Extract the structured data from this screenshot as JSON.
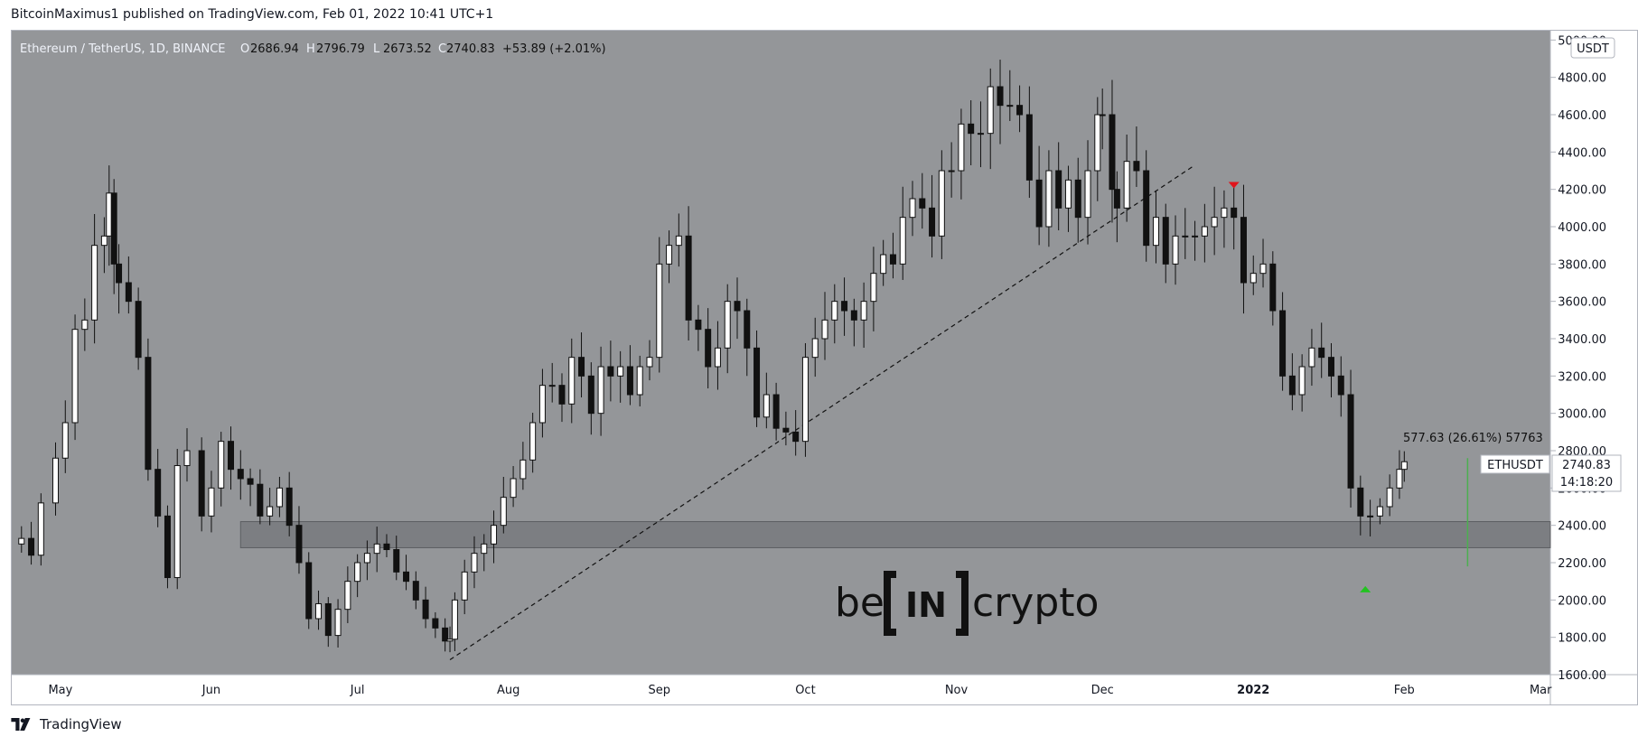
{
  "header": {
    "published_line": "BitcoinMaximus1 published on TradingView.com, Feb 01, 2022 10:41 UTC+1"
  },
  "legend": {
    "symbol": "Ethereum / TetherUS, 1D, BINANCE",
    "o_key": "O",
    "o_val": "2686.94",
    "h_key": "H",
    "h_val": "2796.79",
    "l_key": "L",
    "l_val": "2673.52",
    "c_key": "C",
    "c_val": "2740.83",
    "change": "+53.89 (+2.01%)"
  },
  "price_axis": {
    "currency": "USDT",
    "labels": [
      "5000.00",
      "4800.00",
      "4600.00",
      "4400.00",
      "4200.00",
      "4000.00",
      "3800.00",
      "3600.00",
      "3400.00",
      "3200.00",
      "3000.00",
      "2800.00",
      "2600.00",
      "2400.00",
      "2200.00",
      "2000.00",
      "1800.00",
      "1600.00"
    ],
    "last_price_tag": "2740.83",
    "countdown": "14:18:20",
    "symbol_tag": "ETHUSDT"
  },
  "time_axis": {
    "labels": [
      "May",
      "Jun",
      "Jul",
      "Aug",
      "Sep",
      "Oct",
      "Nov",
      "Dec",
      "2022",
      "Feb",
      "Mar"
    ]
  },
  "measure": {
    "label": "577.63 (26.61%) 57763"
  },
  "footer": {
    "brand": "TradingView"
  },
  "watermark": {
    "text_left": "be",
    "text_box": "IN",
    "text_right": "crypto"
  },
  "colors": {
    "plot_bg": "#949699",
    "candle_up": "#ffffff",
    "candle_down": "#111111",
    "support_zone": "#7c7e82",
    "arrow_down": "#e0141c",
    "arrow_up": "#22c320",
    "measure_line": "#4caf50"
  },
  "chart_data": {
    "type": "candlestick",
    "title": "Ethereum / TetherUS, 1D, BINANCE",
    "x_range": [
      "2021-04-21",
      "2022-03-03"
    ],
    "ylim": [
      1600,
      5050
    ],
    "y_scale": "linear",
    "grid": false,
    "support_zone": [
      2280,
      2420
    ],
    "trendline": {
      "from": {
        "date": "2021-07-20",
        "price": 1680
      },
      "to": {
        "date": "2021-12-20",
        "price": 4330
      },
      "style": "dashed"
    },
    "arrows": [
      {
        "date": "2021-12-28",
        "price": 4220,
        "direction": "down",
        "color": "red"
      },
      {
        "date": "2022-01-24",
        "price": 2060,
        "direction": "up",
        "color": "green"
      }
    ],
    "measure_line": {
      "date": "2022-02-14",
      "from": 2180,
      "to": 2760
    },
    "closes": [
      [
        "2021-04-21",
        2300
      ],
      [
        "2021-04-23",
        2330
      ],
      [
        "2021-04-25",
        2240
      ],
      [
        "2021-04-27",
        2520
      ],
      [
        "2021-04-30",
        2760
      ],
      [
        "2021-05-02",
        2950
      ],
      [
        "2021-05-04",
        3450
      ],
      [
        "2021-05-06",
        3500
      ],
      [
        "2021-05-08",
        3900
      ],
      [
        "2021-05-10",
        3950
      ],
      [
        "2021-05-11",
        4180
      ],
      [
        "2021-05-12",
        3800
      ],
      [
        "2021-05-13",
        3700
      ],
      [
        "2021-05-15",
        3600
      ],
      [
        "2021-05-17",
        3300
      ],
      [
        "2021-05-19",
        2700
      ],
      [
        "2021-05-21",
        2450
      ],
      [
        "2021-05-23",
        2120
      ],
      [
        "2021-05-25",
        2720
      ],
      [
        "2021-05-27",
        2800
      ],
      [
        "2021-05-30",
        2450
      ],
      [
        "2021-06-01",
        2600
      ],
      [
        "2021-06-03",
        2850
      ],
      [
        "2021-06-05",
        2700
      ],
      [
        "2021-06-07",
        2650
      ],
      [
        "2021-06-09",
        2620
      ],
      [
        "2021-06-11",
        2450
      ],
      [
        "2021-06-13",
        2500
      ],
      [
        "2021-06-15",
        2600
      ],
      [
        "2021-06-17",
        2400
      ],
      [
        "2021-06-19",
        2200
      ],
      [
        "2021-06-21",
        1900
      ],
      [
        "2021-06-23",
        1980
      ],
      [
        "2021-06-25",
        1810
      ],
      [
        "2021-06-27",
        1950
      ],
      [
        "2021-06-29",
        2100
      ],
      [
        "2021-07-01",
        2200
      ],
      [
        "2021-07-03",
        2250
      ],
      [
        "2021-07-05",
        2300
      ],
      [
        "2021-07-07",
        2270
      ],
      [
        "2021-07-09",
        2150
      ],
      [
        "2021-07-11",
        2100
      ],
      [
        "2021-07-13",
        2000
      ],
      [
        "2021-07-15",
        1900
      ],
      [
        "2021-07-17",
        1850
      ],
      [
        "2021-07-19",
        1780
      ],
      [
        "2021-07-20",
        1790
      ],
      [
        "2021-07-21",
        2000
      ],
      [
        "2021-07-23",
        2150
      ],
      [
        "2021-07-25",
        2250
      ],
      [
        "2021-07-27",
        2300
      ],
      [
        "2021-07-29",
        2400
      ],
      [
        "2021-07-31",
        2550
      ],
      [
        "2021-08-02",
        2650
      ],
      [
        "2021-08-04",
        2750
      ],
      [
        "2021-08-06",
        2950
      ],
      [
        "2021-08-08",
        3150
      ],
      [
        "2021-08-10",
        3150
      ],
      [
        "2021-08-12",
        3050
      ],
      [
        "2021-08-14",
        3300
      ],
      [
        "2021-08-16",
        3200
      ],
      [
        "2021-08-18",
        3000
      ],
      [
        "2021-08-20",
        3250
      ],
      [
        "2021-08-22",
        3200
      ],
      [
        "2021-08-24",
        3250
      ],
      [
        "2021-08-26",
        3100
      ],
      [
        "2021-08-28",
        3250
      ],
      [
        "2021-08-30",
        3300
      ],
      [
        "2021-09-01",
        3800
      ],
      [
        "2021-09-03",
        3900
      ],
      [
        "2021-09-05",
        3950
      ],
      [
        "2021-09-07",
        3500
      ],
      [
        "2021-09-09",
        3450
      ],
      [
        "2021-09-11",
        3250
      ],
      [
        "2021-09-13",
        3350
      ],
      [
        "2021-09-15",
        3600
      ],
      [
        "2021-09-17",
        3550
      ],
      [
        "2021-09-19",
        3350
      ],
      [
        "2021-09-21",
        2980
      ],
      [
        "2021-09-23",
        3100
      ],
      [
        "2021-09-25",
        2920
      ],
      [
        "2021-09-27",
        2900
      ],
      [
        "2021-09-29",
        2850
      ],
      [
        "2021-10-01",
        3300
      ],
      [
        "2021-10-03",
        3400
      ],
      [
        "2021-10-05",
        3500
      ],
      [
        "2021-10-07",
        3600
      ],
      [
        "2021-10-09",
        3550
      ],
      [
        "2021-10-11",
        3500
      ],
      [
        "2021-10-13",
        3600
      ],
      [
        "2021-10-15",
        3750
      ],
      [
        "2021-10-17",
        3850
      ],
      [
        "2021-10-19",
        3800
      ],
      [
        "2021-10-21",
        4050
      ],
      [
        "2021-10-23",
        4150
      ],
      [
        "2021-10-25",
        4100
      ],
      [
        "2021-10-27",
        3950
      ],
      [
        "2021-10-29",
        4300
      ],
      [
        "2021-10-31",
        4300
      ],
      [
        "2021-11-02",
        4550
      ],
      [
        "2021-11-04",
        4500
      ],
      [
        "2021-11-06",
        4500
      ],
      [
        "2021-11-08",
        4750
      ],
      [
        "2021-11-10",
        4650
      ],
      [
        "2021-11-12",
        4650
      ],
      [
        "2021-11-14",
        4600
      ],
      [
        "2021-11-16",
        4250
      ],
      [
        "2021-11-18",
        4000
      ],
      [
        "2021-11-20",
        4300
      ],
      [
        "2021-11-22",
        4100
      ],
      [
        "2021-11-24",
        4250
      ],
      [
        "2021-11-26",
        4050
      ],
      [
        "2021-11-28",
        4300
      ],
      [
        "2021-11-30",
        4600
      ],
      [
        "2021-12-01",
        4600
      ],
      [
        "2021-12-03",
        4200
      ],
      [
        "2021-12-04",
        4100
      ],
      [
        "2021-12-06",
        4350
      ],
      [
        "2021-12-08",
        4300
      ],
      [
        "2021-12-10",
        3900
      ],
      [
        "2021-12-12",
        4050
      ],
      [
        "2021-12-14",
        3800
      ],
      [
        "2021-12-16",
        3950
      ],
      [
        "2021-12-18",
        3950
      ],
      [
        "2021-12-20",
        3950
      ],
      [
        "2021-12-22",
        4000
      ],
      [
        "2021-12-24",
        4050
      ],
      [
        "2021-12-26",
        4100
      ],
      [
        "2021-12-28",
        4050
      ],
      [
        "2021-12-30",
        3700
      ],
      [
        "2022-01-01",
        3750
      ],
      [
        "2022-01-03",
        3800
      ],
      [
        "2022-01-05",
        3550
      ],
      [
        "2022-01-07",
        3200
      ],
      [
        "2022-01-09",
        3100
      ],
      [
        "2022-01-11",
        3250
      ],
      [
        "2022-01-13",
        3350
      ],
      [
        "2022-01-15",
        3300
      ],
      [
        "2022-01-17",
        3200
      ],
      [
        "2022-01-19",
        3100
      ],
      [
        "2022-01-21",
        2600
      ],
      [
        "2022-01-23",
        2450
      ],
      [
        "2022-01-25",
        2450
      ],
      [
        "2022-01-27",
        2500
      ],
      [
        "2022-01-29",
        2600
      ],
      [
        "2022-01-31",
        2700
      ],
      [
        "2022-02-01",
        2740.83
      ]
    ]
  }
}
